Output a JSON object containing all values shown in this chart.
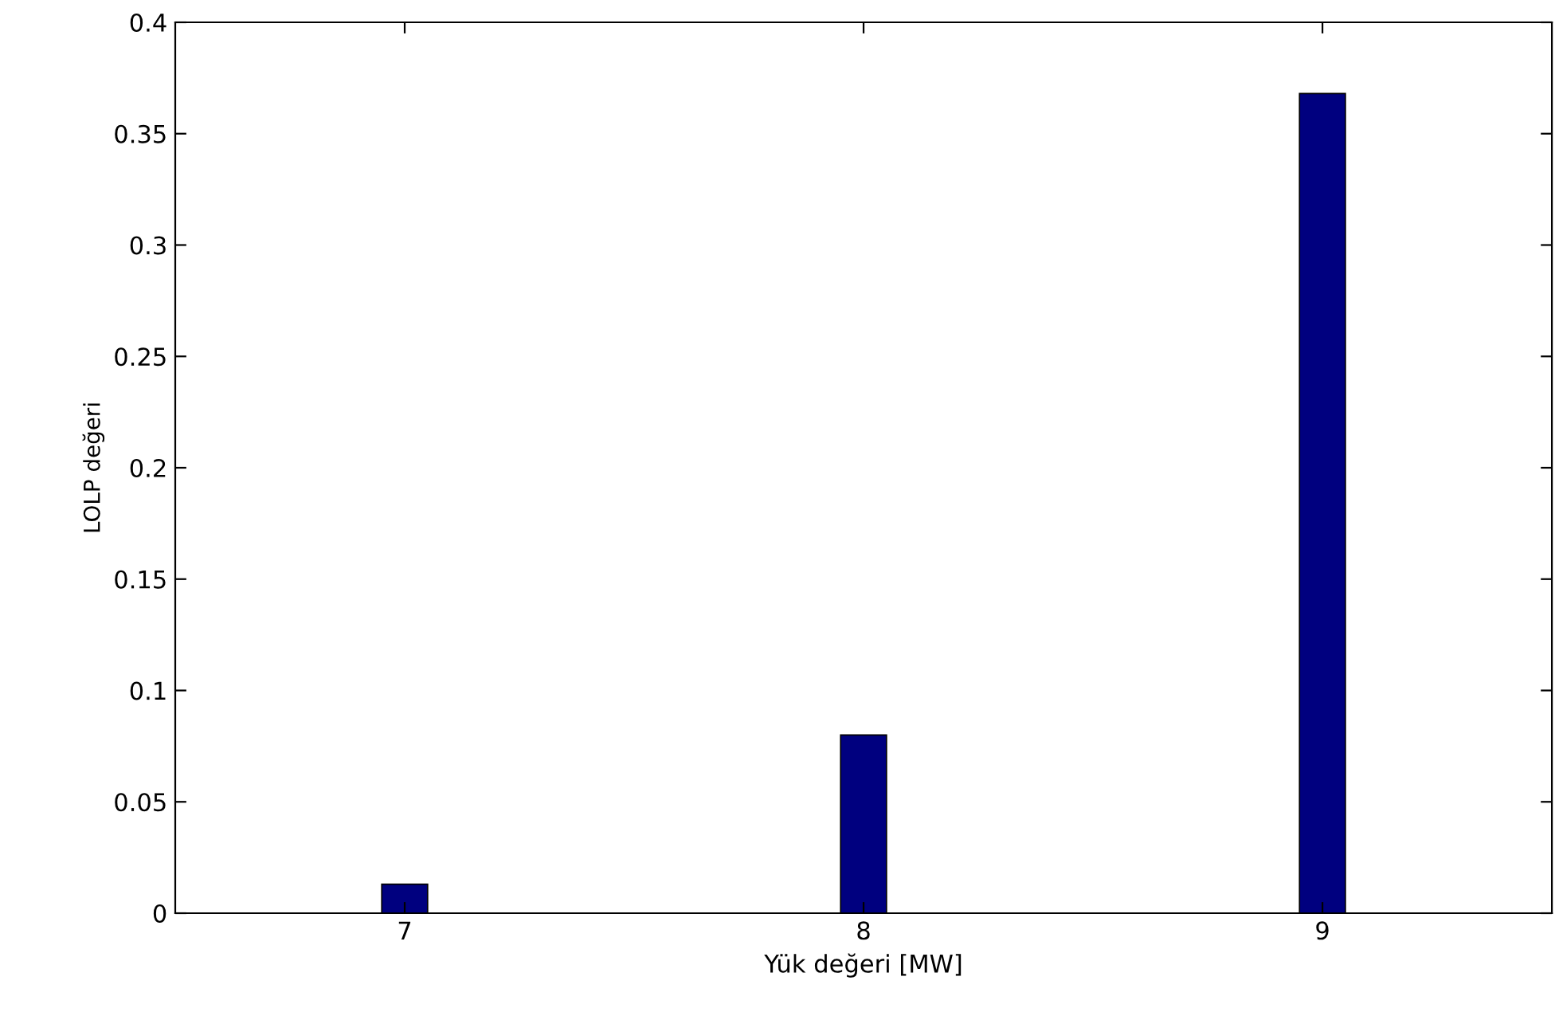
{
  "chart_data": {
    "type": "bar",
    "xlabel": "Yük değeri [MW]",
    "ylabel": "LOLP değeri",
    "categories": [
      "7",
      "8",
      "9"
    ],
    "values": [
      0.013,
      0.08,
      0.368
    ],
    "color": "#00007f",
    "ylim": [
      0,
      0.4
    ],
    "yticks": [
      0,
      0.05,
      0.1,
      0.15,
      0.2,
      0.25,
      0.3,
      0.35,
      0.4
    ],
    "grid": false
  }
}
